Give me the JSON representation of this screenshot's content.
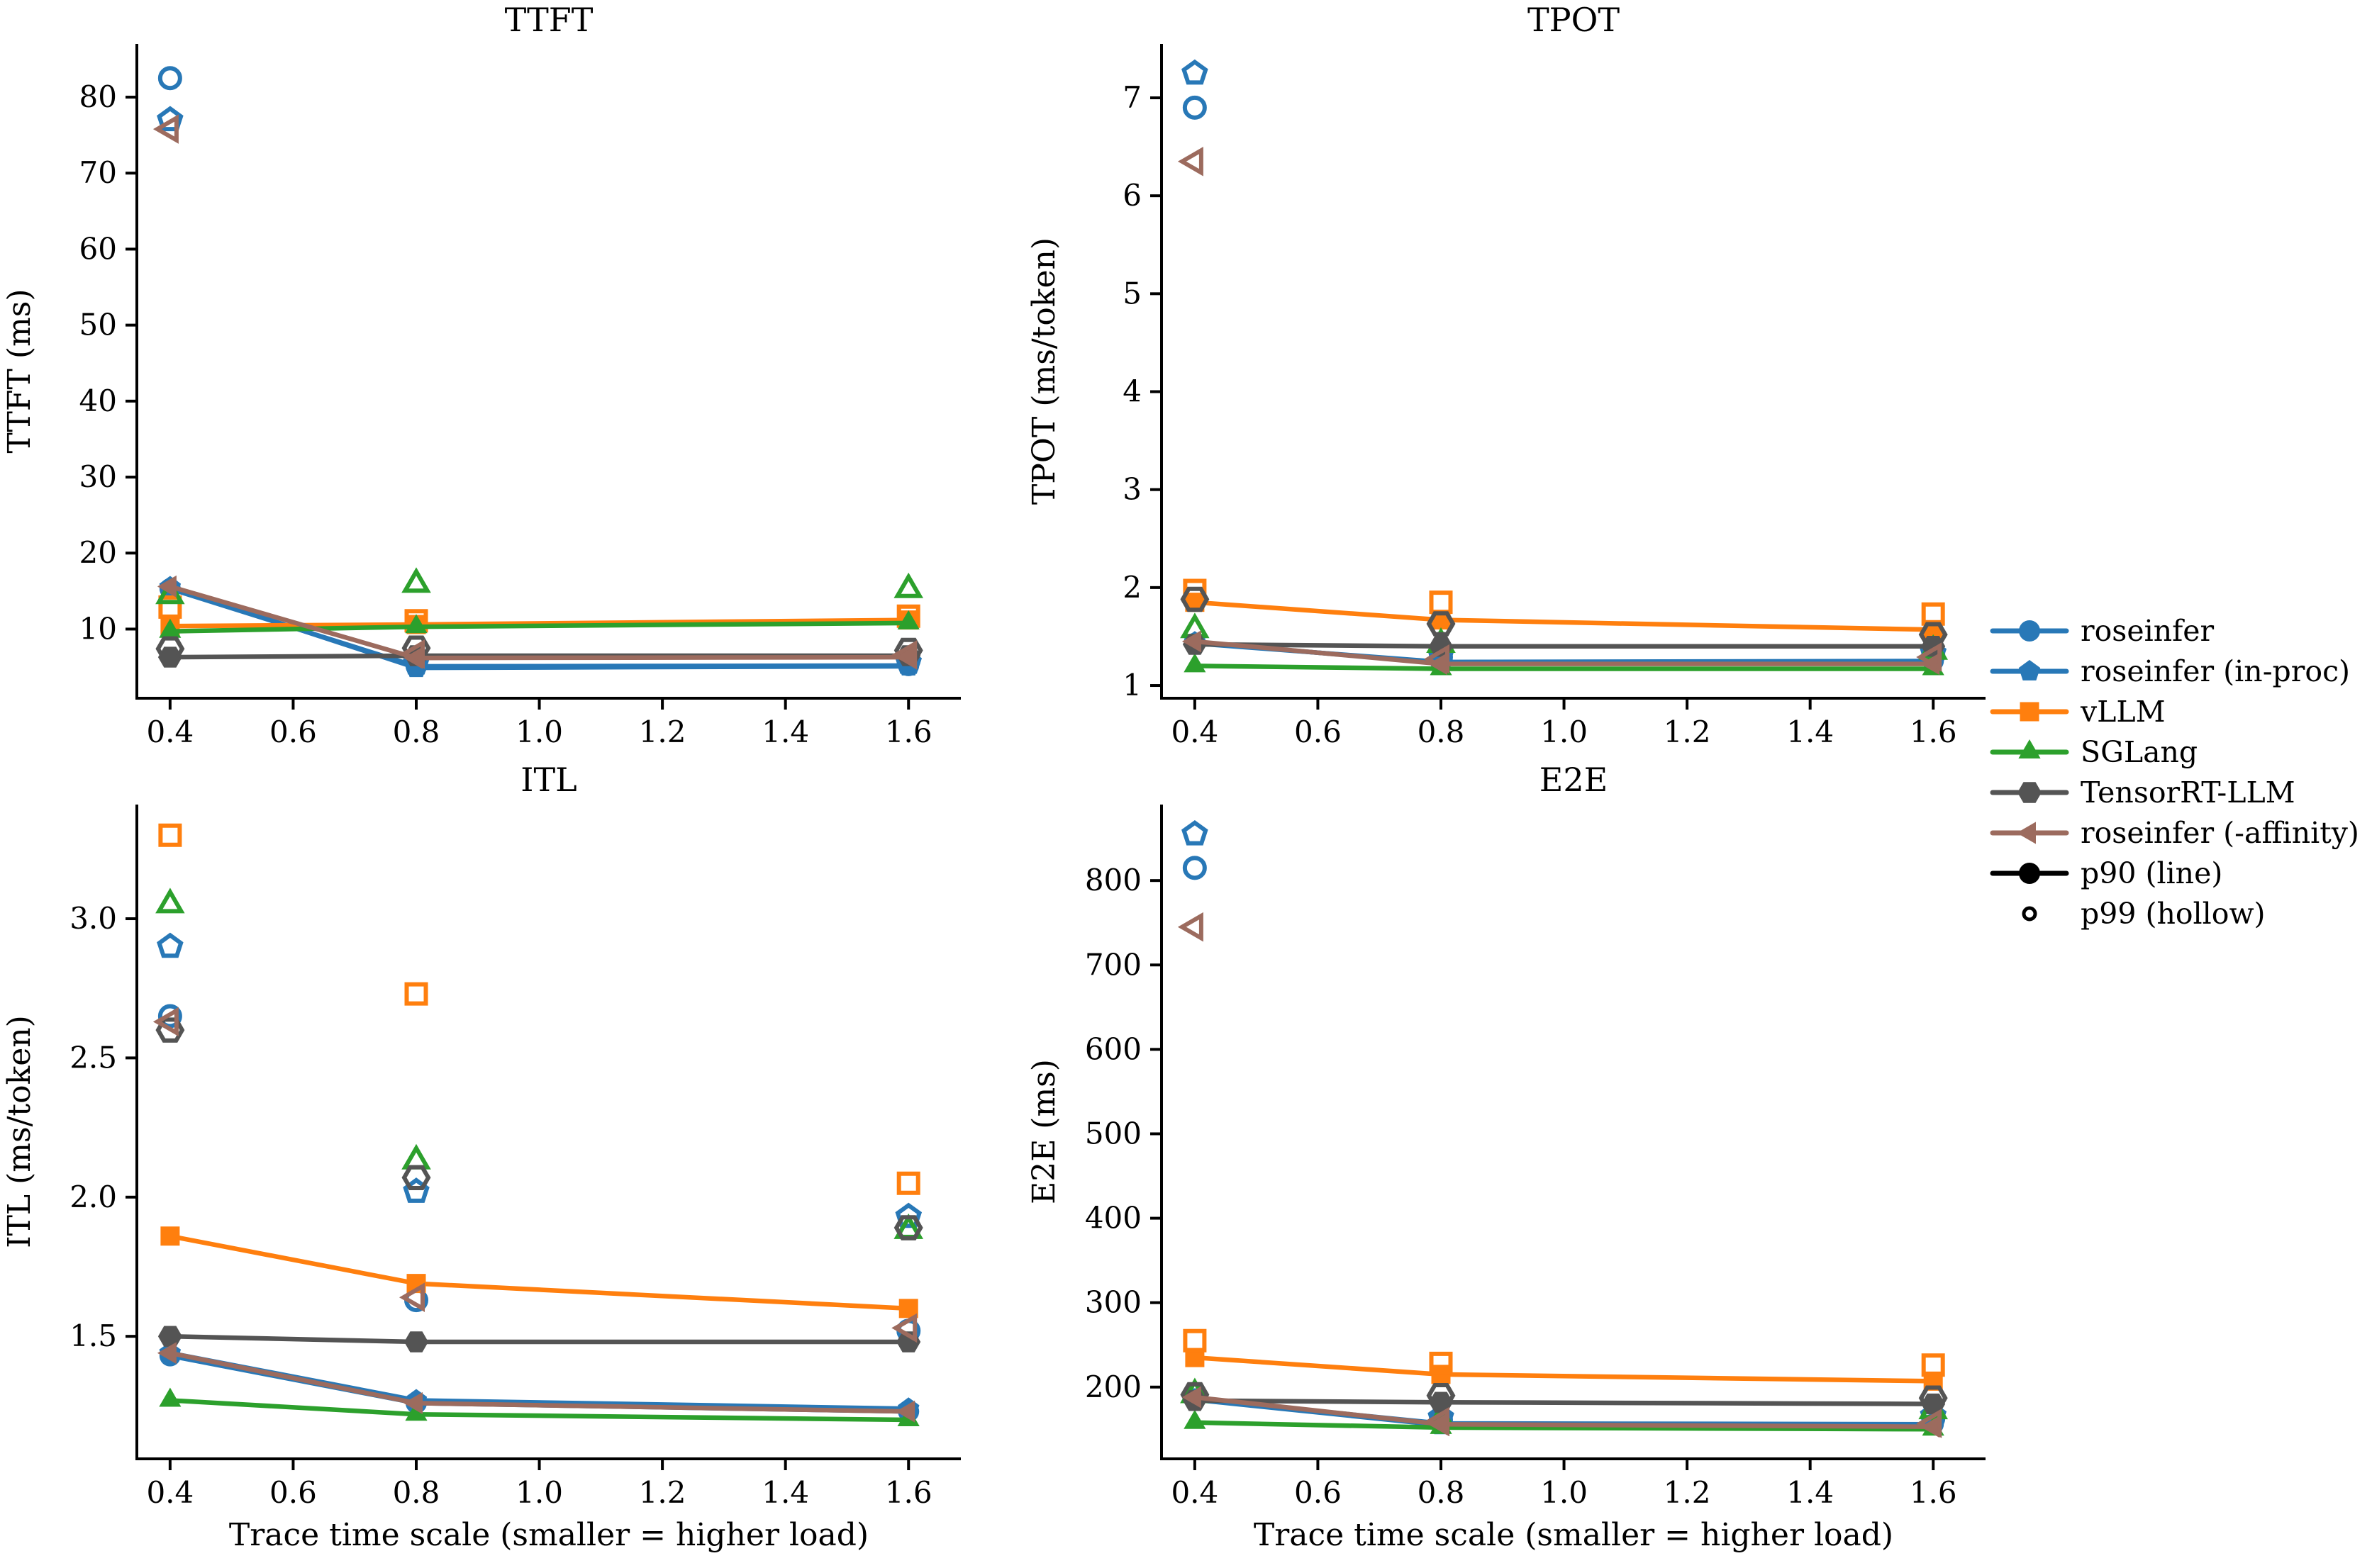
{
  "figure": {
    "xlabel": "Trace time scale (smaller = higher load)",
    "background": "#ffffff",
    "text_color": "#000000"
  },
  "colors": {
    "roseinfer": "#2878b7",
    "vllm": "#ff7f0e",
    "sglang": "#2ca02c",
    "tensorrt": "#545454",
    "affinity": "#9c6b5e",
    "black": "#000000"
  },
  "legend": {
    "items": [
      {
        "label": "roseinfer",
        "color": "#2878b7",
        "marker": "circle",
        "style": "line-filled"
      },
      {
        "label": "roseinfer (in-proc)",
        "color": "#2878b7",
        "marker": "pentagon",
        "style": "line-filled"
      },
      {
        "label": "vLLM",
        "color": "#ff7f0e",
        "marker": "square",
        "style": "line-filled"
      },
      {
        "label": "SGLang",
        "color": "#2ca02c",
        "marker": "triangle-up",
        "style": "line-filled"
      },
      {
        "label": "TensorRT-LLM",
        "color": "#545454",
        "marker": "hexagon",
        "style": "line-filled"
      },
      {
        "label": "roseinfer (-affinity)",
        "color": "#9c6b5e",
        "marker": "triangle-left",
        "style": "line-filled"
      },
      {
        "label": "p90 (line)",
        "color": "#000000",
        "marker": "circle",
        "style": "line-filled"
      },
      {
        "label": "p99 (hollow)",
        "color": "#000000",
        "marker": "circle-small",
        "style": "hollow"
      }
    ]
  },
  "chart_data": [
    {
      "type": "line",
      "title": "TTFT",
      "ylabel": "TTFT (ms)",
      "xlabel": "",
      "x": [
        0.4,
        0.8,
        1.6
      ],
      "xlim": [
        0.346,
        1.685
      ],
      "xtick_values": [
        0.4,
        0.6,
        0.8,
        1.0,
        1.2,
        1.4,
        1.6
      ],
      "xtick_labels": [
        "0.4",
        "0.6",
        "0.8",
        "1.0",
        "1.2",
        "1.4",
        "1.6"
      ],
      "ylim": [
        0.9,
        87
      ],
      "ytick_values": [
        10,
        20,
        30,
        40,
        50,
        60,
        70,
        80
      ],
      "ytick_labels": [
        "10",
        "20",
        "30",
        "40",
        "50",
        "60",
        "70",
        "80"
      ],
      "series": [
        {
          "name": "roseinfer",
          "color": "#2878b7",
          "marker": "circle",
          "p90": [
            15.3,
            5.1,
            5.2
          ],
          "p99": [
            82.5,
            6.0,
            5.9
          ]
        },
        {
          "name": "roseinfer (in-proc)",
          "color": "#2878b7",
          "marker": "pentagon",
          "p90": [
            15.5,
            4.9,
            5.1
          ],
          "p99": [
            77.0,
            5.5,
            5.6
          ]
        },
        {
          "name": "vLLM",
          "color": "#ff7f0e",
          "marker": "square",
          "p90": [
            10.4,
            10.6,
            11.2
          ],
          "p99": [
            12.9,
            11.1,
            11.7
          ]
        },
        {
          "name": "SGLang",
          "color": "#2ca02c",
          "marker": "triangle-up",
          "p90": [
            9.7,
            10.3,
            10.8
          ],
          "p99": [
            14.4,
            15.9,
            15.2
          ]
        },
        {
          "name": "TensorRT-LLM",
          "color": "#545454",
          "marker": "hexagon",
          "p90": [
            6.3,
            6.5,
            6.5
          ],
          "p99": [
            7.4,
            7.5,
            7.2
          ]
        },
        {
          "name": "roseinfer (-affinity)",
          "color": "#9c6b5e",
          "marker": "triangle-left",
          "p90": [
            15.6,
            6.2,
            6.3
          ],
          "p99": [
            75.8,
            6.7,
            6.6
          ]
        }
      ]
    },
    {
      "type": "line",
      "title": "TPOT",
      "ylabel": "TPOT (ms/token)",
      "xlabel": "",
      "x": [
        0.4,
        0.8,
        1.6
      ],
      "xlim": [
        0.346,
        1.685
      ],
      "xtick_values": [
        0.4,
        0.6,
        0.8,
        1.0,
        1.2,
        1.4,
        1.6
      ],
      "xtick_labels": [
        "0.4",
        "0.6",
        "0.8",
        "1.0",
        "1.2",
        "1.4",
        "1.6"
      ],
      "ylim": [
        0.87,
        7.55
      ],
      "ytick_values": [
        1,
        2,
        3,
        4,
        5,
        6,
        7
      ],
      "ytick_labels": [
        "1",
        "2",
        "3",
        "4",
        "5",
        "6",
        "7"
      ],
      "series": [
        {
          "name": "roseinfer",
          "color": "#2878b7",
          "marker": "circle",
          "p90": [
            1.43,
            1.24,
            1.25
          ],
          "p99": [
            6.9,
            1.29,
            1.31
          ]
        },
        {
          "name": "roseinfer (in-proc)",
          "color": "#2878b7",
          "marker": "pentagon",
          "p90": [
            1.44,
            1.23,
            1.24
          ],
          "p99": [
            7.25,
            1.31,
            1.33
          ]
        },
        {
          "name": "vLLM",
          "color": "#ff7f0e",
          "marker": "square",
          "p90": [
            1.85,
            1.67,
            1.57
          ],
          "p99": [
            1.97,
            1.85,
            1.73
          ]
        },
        {
          "name": "SGLang",
          "color": "#2ca02c",
          "marker": "triangle-up",
          "p90": [
            1.2,
            1.17,
            1.17
          ],
          "p99": [
            1.57,
            1.42,
            1.35
          ]
        },
        {
          "name": "TensorRT-LLM",
          "color": "#545454",
          "marker": "hexagon",
          "p90": [
            1.42,
            1.4,
            1.4
          ],
          "p99": [
            1.88,
            1.63,
            1.52
          ]
        },
        {
          "name": "roseinfer (-affinity)",
          "color": "#9c6b5e",
          "marker": "triangle-left",
          "p90": [
            1.45,
            1.22,
            1.22
          ],
          "p99": [
            6.35,
            1.27,
            1.29
          ]
        }
      ]
    },
    {
      "type": "line",
      "title": "ITL",
      "ylabel": "ITL (ms/token)",
      "xlabel": "Trace time scale (smaller = higher load)",
      "x": [
        0.4,
        0.8,
        1.6
      ],
      "xlim": [
        0.346,
        1.685
      ],
      "xtick_values": [
        0.4,
        0.6,
        0.8,
        1.0,
        1.2,
        1.4,
        1.6
      ],
      "xtick_labels": [
        "0.4",
        "0.6",
        "0.8",
        "1.0",
        "1.2",
        "1.4",
        "1.6"
      ],
      "ylim": [
        1.06,
        3.41
      ],
      "ytick_values": [
        1.5,
        2.0,
        2.5,
        3.0
      ],
      "ytick_labels": [
        "1.5",
        "2.0",
        "2.5",
        "3.0"
      ],
      "series": [
        {
          "name": "roseinfer",
          "color": "#2878b7",
          "marker": "circle",
          "p90": [
            1.43,
            1.26,
            1.23
          ],
          "p99": [
            2.65,
            1.63,
            1.52
          ]
        },
        {
          "name": "roseinfer (in-proc)",
          "color": "#2878b7",
          "marker": "pentagon",
          "p90": [
            1.44,
            1.27,
            1.24
          ],
          "p99": [
            2.9,
            2.02,
            1.93
          ]
        },
        {
          "name": "vLLM",
          "color": "#ff7f0e",
          "marker": "square",
          "p90": [
            1.86,
            1.69,
            1.6
          ],
          "p99": [
            3.3,
            2.73,
            2.05
          ]
        },
        {
          "name": "SGLang",
          "color": "#2ca02c",
          "marker": "triangle-up",
          "p90": [
            1.27,
            1.22,
            1.2
          ],
          "p99": [
            3.05,
            2.13,
            1.88
          ]
        },
        {
          "name": "TensorRT-LLM",
          "color": "#545454",
          "marker": "hexagon",
          "p90": [
            1.5,
            1.48,
            1.48
          ],
          "p99": [
            2.6,
            2.07,
            1.89
          ]
        },
        {
          "name": "roseinfer (-affinity)",
          "color": "#9c6b5e",
          "marker": "triangle-left",
          "p90": [
            1.44,
            1.26,
            1.23
          ],
          "p99": [
            2.63,
            1.64,
            1.53
          ]
        }
      ]
    },
    {
      "type": "line",
      "title": "E2E",
      "ylabel": "E2E (ms)",
      "xlabel": "Trace time scale (smaller = higher load)",
      "x": [
        0.4,
        0.8,
        1.6
      ],
      "xlim": [
        0.346,
        1.685
      ],
      "xtick_values": [
        0.4,
        0.6,
        0.8,
        1.0,
        1.2,
        1.4,
        1.6
      ],
      "xtick_labels": [
        "0.4",
        "0.6",
        "0.8",
        "1.0",
        "1.2",
        "1.4",
        "1.6"
      ],
      "ylim": [
        115,
        890
      ],
      "ytick_values": [
        200,
        300,
        400,
        500,
        600,
        700,
        800
      ],
      "ytick_labels": [
        "200",
        "300",
        "400",
        "500",
        "600",
        "700",
        "800"
      ],
      "series": [
        {
          "name": "roseinfer",
          "color": "#2878b7",
          "marker": "circle",
          "p90": [
            186,
            157,
            156
          ],
          "p99": [
            815,
            161,
            163
          ]
        },
        {
          "name": "roseinfer (in-proc)",
          "color": "#2878b7",
          "marker": "pentagon",
          "p90": [
            185,
            155,
            154
          ],
          "p99": [
            855,
            164,
            166
          ]
        },
        {
          "name": "vLLM",
          "color": "#ff7f0e",
          "marker": "square",
          "p90": [
            235,
            215,
            207
          ],
          "p99": [
            255,
            228,
            226
          ]
        },
        {
          "name": "SGLang",
          "color": "#2ca02c",
          "marker": "triangle-up",
          "p90": [
            158,
            152,
            150
          ],
          "p99": [
            191,
            161,
            172
          ]
        },
        {
          "name": "TensorRT-LLM",
          "color": "#545454",
          "marker": "hexagon",
          "p90": [
            184,
            182,
            180
          ],
          "p99": [
            191,
            190,
            187
          ]
        },
        {
          "name": "roseinfer (-affinity)",
          "color": "#9c6b5e",
          "marker": "triangle-left",
          "p90": [
            188,
            156,
            153
          ],
          "p99": [
            745,
            159,
            157
          ]
        }
      ]
    }
  ]
}
